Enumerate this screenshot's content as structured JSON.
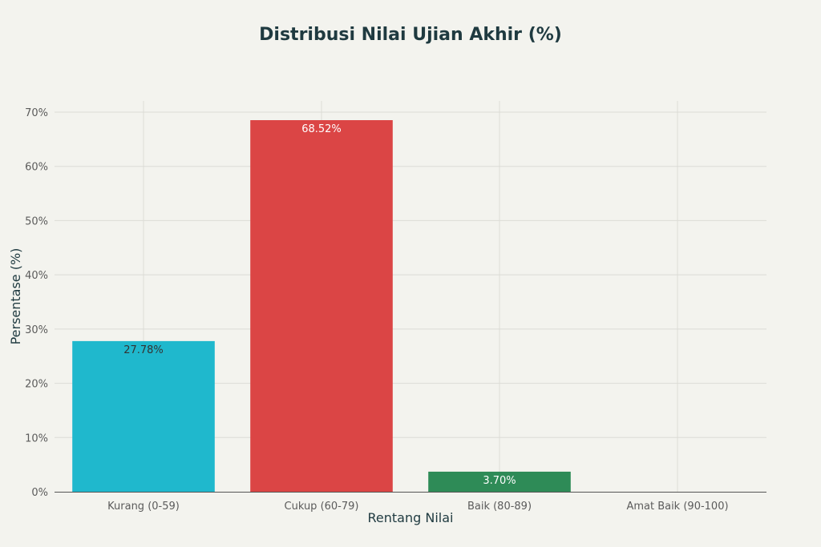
{
  "chart_data": {
    "type": "bar",
    "title": "Distribusi Nilai Ujian Akhir (%)",
    "xlabel": "Rentang Nilai",
    "ylabel": "Persentase (%)",
    "categories": [
      "Kurang (0-59)",
      "Cukup (60-79)",
      "Baik (80-89)",
      "Amat Baik (90-100)"
    ],
    "values": [
      27.78,
      68.52,
      3.7,
      0
    ],
    "data_labels": [
      "27.78%",
      "68.52%",
      "3.70%",
      ""
    ],
    "bar_colors": [
      "#1fb8cd",
      "#db4545",
      "#2e8b57",
      "#5d878f"
    ],
    "label_colors": [
      "#333333",
      "#ffffff",
      "#ffffff",
      "#333333"
    ],
    "y_ticks": [
      0,
      10,
      20,
      30,
      40,
      50,
      60,
      70
    ],
    "y_tick_labels": [
      "0%",
      "10%",
      "20%",
      "30%",
      "40%",
      "50%",
      "60%",
      "70%"
    ],
    "ylim": [
      0,
      72
    ],
    "grid": true,
    "legend": "none"
  }
}
